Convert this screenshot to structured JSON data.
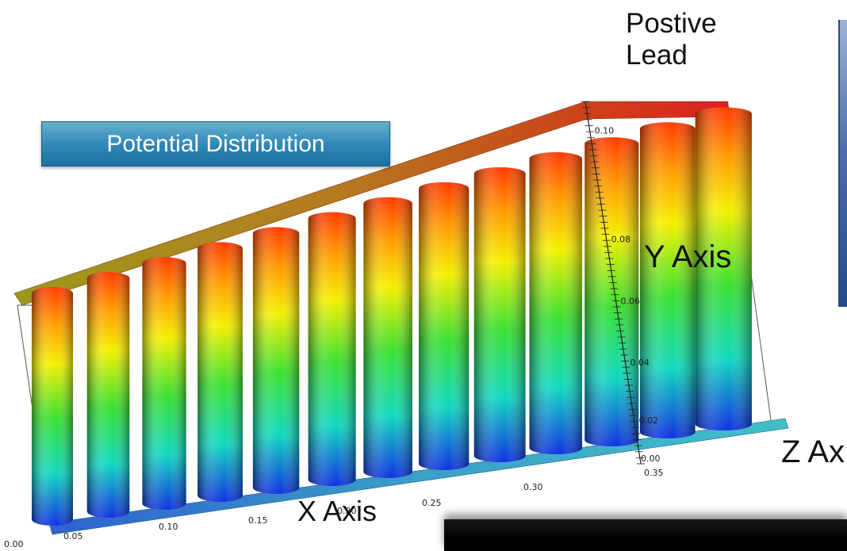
{
  "lead_label_line1": "Postive",
  "lead_label_line2": "Lead",
  "title_badge": "Potential Distribution",
  "axes": {
    "x_title": "X Axis",
    "y_title": "Y Axis",
    "z_title": "Z Ax",
    "x_ticks": [
      "0.00",
      "0.05",
      "0.10",
      "0.15",
      "0.20",
      "0.25",
      "0.30",
      "0.35"
    ],
    "y_ticks": [
      "0.02",
      "0.04",
      "0.06",
      "0.08",
      "0.10"
    ],
    "z_tick_first": "0.00"
  },
  "cylinder_count": 13,
  "colors": {
    "top_bar_left": "#9a9a1a",
    "top_bar_right": "#e02020",
    "bottom_bar_left": "#3060d0",
    "bottom_bar_right": "#40c0c8",
    "badge": "#2f8ab8"
  }
}
